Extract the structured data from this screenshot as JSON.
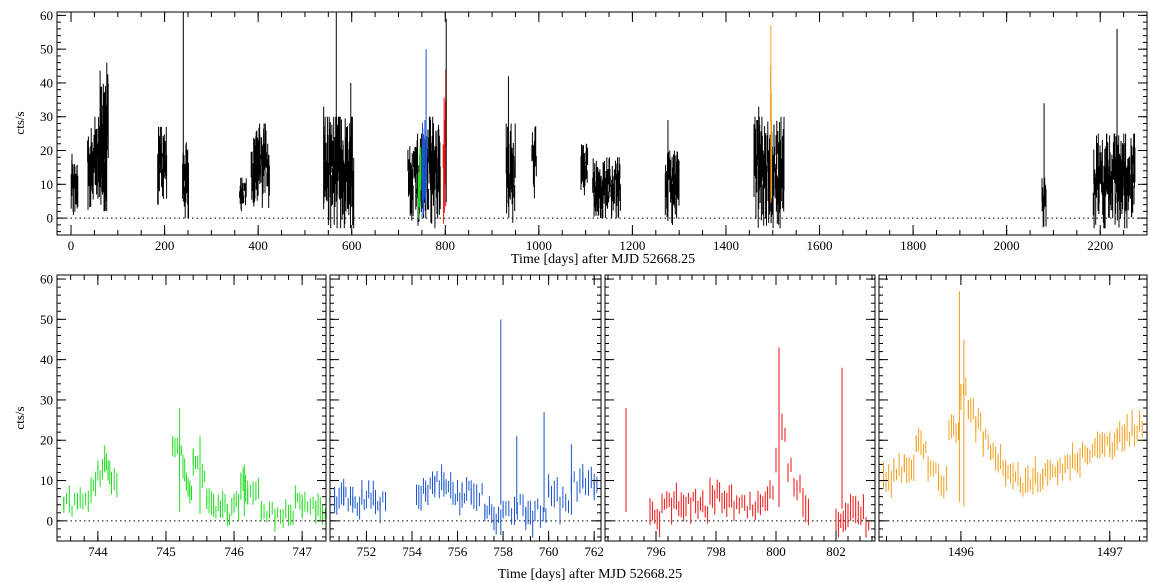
{
  "chart_data": [
    {
      "id": "top",
      "type": "scatter",
      "xlabel": "Time [days] after MJD 52668.25",
      "ylabel": "cts/s",
      "xlim": [
        -30,
        2300
      ],
      "ylim": [
        -5,
        61
      ],
      "xticks": [
        0,
        200,
        400,
        600,
        800,
        1000,
        1200,
        1400,
        1600,
        1800,
        2000,
        2200
      ],
      "yticks": [
        0,
        10,
        20,
        30,
        40,
        50,
        60
      ],
      "zero_line": true,
      "segments": [
        {
          "x0": 0,
          "x1": 15,
          "lo": 0,
          "hi": 19,
          "color": "#000000"
        },
        {
          "x0": 35,
          "x1": 78,
          "lo": 2,
          "hi": 30,
          "color": "#000000"
        },
        {
          "x0": 62,
          "x1": 80,
          "lo": 5,
          "hi": 46,
          "color": "#000000"
        },
        {
          "x0": 185,
          "x1": 205,
          "lo": 4,
          "hi": 27,
          "color": "#000000"
        },
        {
          "x0": 238,
          "x1": 252,
          "lo": 0,
          "hi": 23,
          "color": "#000000"
        },
        {
          "x0": 360,
          "x1": 375,
          "lo": 2,
          "hi": 12,
          "color": "#000000"
        },
        {
          "x0": 385,
          "x1": 425,
          "lo": 3,
          "hi": 28,
          "color": "#000000"
        },
        {
          "x0": 540,
          "x1": 605,
          "lo": -3,
          "hi": 30,
          "color": "#000000"
        },
        {
          "x0": 720,
          "x1": 760,
          "lo": -3,
          "hi": 25,
          "color": "#000000"
        },
        {
          "x0": 742,
          "x1": 748,
          "lo": -2,
          "hi": 21,
          "color": "#22dd22"
        },
        {
          "x0": 750,
          "x1": 762,
          "lo": -3,
          "hi": 30,
          "color": "#1a55cc"
        },
        {
          "x0": 762,
          "x1": 790,
          "lo": -3,
          "hi": 30,
          "color": "#000000"
        },
        {
          "x0": 795,
          "x1": 803,
          "lo": -2,
          "hi": 38,
          "color": "#ee1111"
        },
        {
          "x0": 930,
          "x1": 950,
          "lo": -3,
          "hi": 28,
          "color": "#000000"
        },
        {
          "x0": 985,
          "x1": 995,
          "lo": 5,
          "hi": 28,
          "color": "#000000"
        },
        {
          "x0": 1090,
          "x1": 1105,
          "lo": 5,
          "hi": 22,
          "color": "#000000"
        },
        {
          "x0": 1115,
          "x1": 1175,
          "lo": 0,
          "hi": 18,
          "color": "#000000"
        },
        {
          "x0": 1270,
          "x1": 1300,
          "lo": -2,
          "hi": 20,
          "color": "#000000"
        },
        {
          "x0": 1460,
          "x1": 1525,
          "lo": -3,
          "hi": 30,
          "color": "#000000"
        },
        {
          "x0": 1495,
          "x1": 1498,
          "lo": 2,
          "hi": 47,
          "color": "#f0a020"
        },
        {
          "x0": 2075,
          "x1": 2085,
          "lo": -3,
          "hi": 12,
          "color": "#000000"
        },
        {
          "x0": 2185,
          "x1": 2275,
          "lo": -3,
          "hi": 25,
          "color": "#000000"
        }
      ],
      "spikes": [
        {
          "x": 240,
          "top": 61,
          "color": "#000000"
        },
        {
          "x": 567,
          "top": 61,
          "color": "#000000"
        },
        {
          "x": 759,
          "top": 50,
          "color": "#1a55cc"
        },
        {
          "x": 801,
          "top": 44,
          "color": "#ee1111"
        },
        {
          "x": 802,
          "top": 59,
          "color": "#000000"
        },
        {
          "x": 1496,
          "top": 57,
          "color": "#f0a020"
        },
        {
          "x": 2236,
          "top": 56,
          "color": "#000000"
        },
        {
          "x": 2080,
          "top": 34,
          "color": "#000000"
        },
        {
          "x": 935,
          "top": 42,
          "color": "#000000"
        },
        {
          "x": 1276,
          "top": 29,
          "color": "#000000"
        },
        {
          "x": 1470,
          "top": 33,
          "color": "#000000"
        },
        {
          "x": 540,
          "top": 33,
          "color": "#000000"
        },
        {
          "x": 598,
          "top": 40,
          "color": "#000000"
        }
      ]
    },
    {
      "id": "green",
      "type": "scatter",
      "ylabel": "cts/s",
      "xlim": [
        743.4,
        747.35
      ],
      "ylim": [
        -5,
        61
      ],
      "xticks": [
        744,
        745,
        746,
        747
      ],
      "yticks": [
        0,
        10,
        20,
        30,
        40,
        50,
        60
      ],
      "color": "#22dd22",
      "zero_line": true,
      "points": [
        [
          743.5,
          4
        ],
        [
          743.7,
          5
        ],
        [
          743.9,
          8
        ],
        [
          744.0,
          12
        ],
        [
          744.1,
          14
        ],
        [
          744.15,
          12
        ],
        [
          744.2,
          10
        ],
        [
          745.1,
          18
        ],
        [
          745.2,
          17
        ],
        [
          745.25,
          13
        ],
        [
          745.3,
          10
        ],
        [
          745.35,
          8
        ],
        [
          745.4,
          16
        ],
        [
          745.5,
          11
        ],
        [
          745.6,
          6
        ],
        [
          745.7,
          4
        ],
        [
          745.8,
          3
        ],
        [
          745.9,
          2
        ],
        [
          746.0,
          4
        ],
        [
          746.1,
          10
        ],
        [
          746.2,
          6
        ],
        [
          746.4,
          2
        ],
        [
          746.6,
          1
        ],
        [
          746.8,
          2
        ],
        [
          746.9,
          5
        ],
        [
          747.0,
          3
        ],
        [
          747.2,
          2
        ],
        [
          747.3,
          1
        ]
      ],
      "spikes": [
        [
          745.2,
          28
        ],
        [
          745.5,
          21
        ],
        [
          746.15,
          14
        ]
      ]
    },
    {
      "id": "blue",
      "type": "scatter",
      "xlim": [
        750.4,
        762.3
      ],
      "ylim": [
        -5,
        61
      ],
      "xticks": [
        752,
        754,
        756,
        758,
        760,
        762
      ],
      "yticks": [
        0,
        10,
        20,
        30,
        40,
        50,
        60
      ],
      "color": "#1a55cc",
      "zero_line": true,
      "points": [
        [
          750.6,
          5
        ],
        [
          751.0,
          6
        ],
        [
          751.4,
          4
        ],
        [
          751.8,
          6
        ],
        [
          752.2,
          5
        ],
        [
          752.6,
          4
        ],
        [
          754.2,
          7
        ],
        [
          754.6,
          8
        ],
        [
          755.0,
          9
        ],
        [
          755.4,
          8
        ],
        [
          755.8,
          6
        ],
        [
          756.2,
          7
        ],
        [
          756.6,
          6
        ],
        [
          757.2,
          2
        ],
        [
          757.6,
          0
        ],
        [
          758.0,
          3
        ],
        [
          758.5,
          4
        ],
        [
          759.0,
          1
        ],
        [
          759.4,
          3
        ],
        [
          760.0,
          8
        ],
        [
          760.5,
          4
        ],
        [
          761.0,
          9
        ],
        [
          761.5,
          10
        ],
        [
          762.0,
          8
        ]
      ],
      "spikes": [
        [
          757.9,
          50
        ],
        [
          758.6,
          21
        ],
        [
          759.8,
          27
        ],
        [
          761.0,
          19
        ]
      ]
    },
    {
      "id": "red",
      "type": "scatter",
      "xlim": [
        794.3,
        803.3
      ],
      "ylim": [
        -5,
        61
      ],
      "xticks": [
        796,
        798,
        800,
        802
      ],
      "yticks": [
        0,
        10,
        20,
        30,
        40,
        50,
        60
      ],
      "color": "#ee1111",
      "zero_line": true,
      "points": [
        [
          795.8,
          1
        ],
        [
          796.2,
          4
        ],
        [
          796.6,
          5
        ],
        [
          797.0,
          4
        ],
        [
          797.4,
          3
        ],
        [
          797.8,
          6
        ],
        [
          798.2,
          5
        ],
        [
          798.6,
          3
        ],
        [
          799.4,
          4
        ],
        [
          799.8,
          8
        ],
        [
          800.0,
          14
        ],
        [
          800.2,
          22
        ],
        [
          800.4,
          12
        ],
        [
          800.6,
          8
        ],
        [
          800.9,
          3
        ],
        [
          802.0,
          1
        ],
        [
          802.4,
          2
        ],
        [
          803.0,
          -1
        ]
      ],
      "spikes": [
        [
          795.0,
          28
        ],
        [
          800.1,
          43
        ],
        [
          802.2,
          38
        ]
      ]
    },
    {
      "id": "orange",
      "type": "scatter",
      "xlim": [
        1495.45,
        1497.25
      ],
      "ylim": [
        -5,
        61
      ],
      "xticks": [
        1496,
        1497
      ],
      "yticks": [
        0,
        10,
        20,
        30,
        40,
        50,
        60
      ],
      "color": "#f0a020",
      "zero_line": true,
      "points": [
        [
          1495.48,
          10
        ],
        [
          1495.55,
          13
        ],
        [
          1495.62,
          14
        ],
        [
          1495.7,
          19
        ],
        [
          1495.78,
          14
        ],
        [
          1495.85,
          10
        ],
        [
          1495.92,
          22
        ],
        [
          1496.0,
          32
        ],
        [
          1496.05,
          28
        ],
        [
          1496.1,
          24
        ],
        [
          1496.15,
          20
        ],
        [
          1496.2,
          17
        ],
        [
          1496.25,
          14
        ],
        [
          1496.3,
          12
        ],
        [
          1496.35,
          10
        ],
        [
          1496.4,
          9
        ],
        [
          1496.45,
          9
        ],
        [
          1496.5,
          11
        ],
        [
          1496.55,
          11
        ],
        [
          1496.6,
          12
        ],
        [
          1496.65,
          13
        ],
        [
          1496.7,
          14
        ],
        [
          1496.75,
          15
        ],
        [
          1496.8,
          16
        ],
        [
          1496.85,
          16
        ],
        [
          1496.9,
          18
        ],
        [
          1496.95,
          19
        ],
        [
          1497.0,
          19
        ],
        [
          1497.05,
          21
        ],
        [
          1497.1,
          22
        ],
        [
          1497.15,
          23
        ],
        [
          1497.2,
          24
        ]
      ],
      "spikes": [
        [
          1495.99,
          57
        ],
        [
          1496.02,
          45
        ]
      ]
    }
  ],
  "bottom_xlabel": "Time [days] after MJD 52668.25"
}
